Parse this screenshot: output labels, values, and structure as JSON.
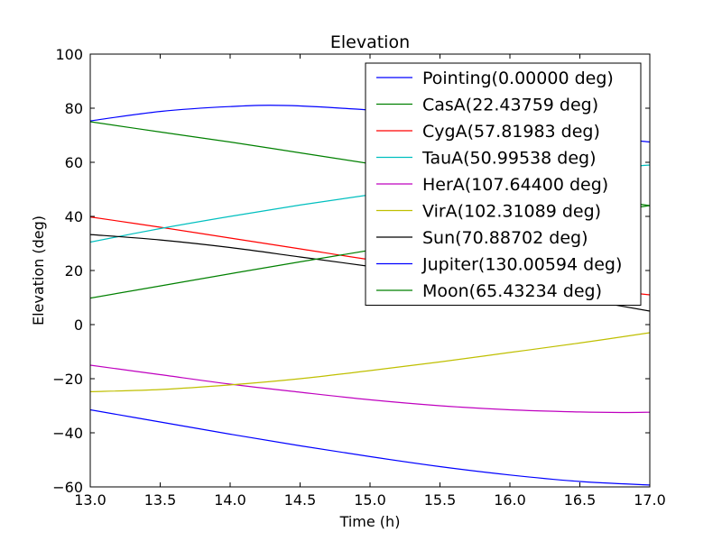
{
  "chart_data": {
    "type": "line",
    "title": "Elevation",
    "xlabel": "Time (h)",
    "ylabel": "Elevation (deg)",
    "xlim": [
      13.0,
      17.0
    ],
    "ylim": [
      -60,
      100
    ],
    "xticks": [
      13.0,
      13.5,
      14.0,
      14.5,
      15.0,
      15.5,
      16.0,
      16.5,
      17.0
    ],
    "xtick_labels": [
      "13.0",
      "13.5",
      "14.0",
      "14.5",
      "15.0",
      "15.5",
      "16.0",
      "16.5",
      "17.0"
    ],
    "yticks": [
      -60,
      -40,
      -20,
      0,
      20,
      40,
      60,
      80,
      100
    ],
    "ytick_labels": [
      "−60",
      "−40",
      "−20",
      "0",
      "20",
      "40",
      "60",
      "80",
      "100"
    ],
    "legend_position": "top-right",
    "grid": false,
    "series": [
      {
        "name": "Pointing(0.00000 deg)",
        "color": "#0000ff",
        "x": [
          13.0,
          13.5,
          14.0,
          14.4,
          15.0,
          15.5,
          16.0,
          16.5,
          17.0
        ],
        "y": [
          75.3,
          78.8,
          80.6,
          81.0,
          79.3,
          77.0,
          73.8,
          70.2,
          67.5
        ]
      },
      {
        "name": "CasA(22.43759 deg)",
        "color": "#008000",
        "x": [
          13.0,
          13.5,
          14.0,
          14.5,
          15.0,
          15.5,
          16.0,
          16.5,
          17.0
        ],
        "y": [
          75.0,
          71.2,
          67.5,
          63.5,
          59.5,
          55.5,
          51.5,
          47.5,
          44.0
        ]
      },
      {
        "name": "CygA(57.81983 deg)",
        "color": "#ff0000",
        "x": [
          13.0,
          13.5,
          14.0,
          14.5,
          15.0,
          15.5,
          16.0,
          16.5,
          17.0
        ],
        "y": [
          39.8,
          36.0,
          32.0,
          28.0,
          24.0,
          20.5,
          17.0,
          13.8,
          11.0
        ]
      },
      {
        "name": "TauA(50.99538 deg)",
        "color": "#00bfbf",
        "x": [
          13.0,
          13.5,
          14.0,
          14.5,
          15.0,
          15.5,
          16.0,
          16.5,
          17.0
        ],
        "y": [
          30.5,
          35.5,
          40.0,
          44.2,
          48.0,
          51.5,
          54.5,
          57.0,
          59.0
        ]
      },
      {
        "name": "HerA(107.64400 deg)",
        "color": "#bf00bf",
        "x": [
          13.0,
          13.5,
          14.0,
          14.5,
          15.0,
          15.5,
          16.0,
          16.5,
          16.8,
          17.0
        ],
        "y": [
          -15.0,
          -18.5,
          -22.0,
          -25.0,
          -27.8,
          -30.0,
          -31.5,
          -32.3,
          -32.5,
          -32.4
        ]
      },
      {
        "name": "VirA(102.31089 deg)",
        "color": "#bfbf00",
        "x": [
          13.0,
          13.5,
          14.0,
          14.5,
          15.0,
          15.5,
          16.0,
          16.5,
          17.0
        ],
        "y": [
          -24.8,
          -24.0,
          -22.3,
          -20.0,
          -17.0,
          -13.8,
          -10.3,
          -6.8,
          -3.0
        ]
      },
      {
        "name": "Sun(70.88702 deg)",
        "color": "#000000",
        "x": [
          13.0,
          13.5,
          14.0,
          14.5,
          15.0,
          15.5,
          16.0,
          16.5,
          17.0
        ],
        "y": [
          33.3,
          31.3,
          28.5,
          25.0,
          21.5,
          17.8,
          13.8,
          9.5,
          5.0
        ]
      },
      {
        "name": "Jupiter(130.00594 deg)",
        "color": "#0000ff",
        "x": [
          13.0,
          13.5,
          14.0,
          14.5,
          15.0,
          15.5,
          16.0,
          16.5,
          17.0
        ],
        "y": [
          -31.5,
          -36.0,
          -40.5,
          -44.8,
          -48.8,
          -52.5,
          -55.6,
          -58.0,
          -59.3
        ]
      },
      {
        "name": "Moon(65.43234 deg)",
        "color": "#008000",
        "x": [
          13.0,
          13.5,
          14.0,
          14.5,
          15.0,
          15.5,
          16.0,
          16.5,
          17.0
        ],
        "y": [
          9.8,
          14.3,
          18.8,
          23.2,
          27.5,
          31.8,
          36.0,
          40.2,
          44.0
        ]
      }
    ]
  }
}
